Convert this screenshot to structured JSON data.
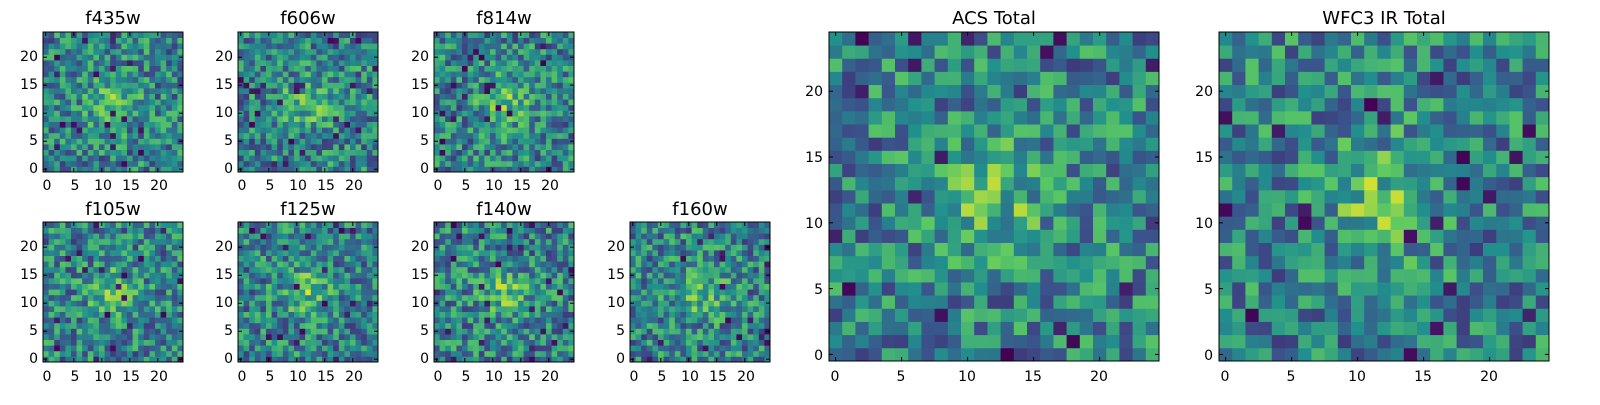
{
  "chart_data": [
    {
      "type": "heatmap",
      "title": "f435w",
      "xticks": [
        "0",
        "5",
        "10",
        "15",
        "20"
      ],
      "yticks": [
        "0",
        "5",
        "10",
        "15",
        "20"
      ],
      "xlim": [
        -0.5,
        24.5
      ],
      "ylim": [
        -0.5,
        24.5
      ],
      "grid_size": 25,
      "seed": 11
    },
    {
      "type": "heatmap",
      "title": "f606w",
      "xticks": [
        "0",
        "5",
        "10",
        "15",
        "20"
      ],
      "yticks": [
        "0",
        "5",
        "10",
        "15",
        "20"
      ],
      "xlim": [
        -0.5,
        24.5
      ],
      "ylim": [
        -0.5,
        24.5
      ],
      "grid_size": 25,
      "seed": 23
    },
    {
      "type": "heatmap",
      "title": "f814w",
      "xticks": [
        "0",
        "5",
        "10",
        "15",
        "20"
      ],
      "yticks": [
        "0",
        "5",
        "10",
        "15",
        "20"
      ],
      "xlim": [
        -0.5,
        24.5
      ],
      "ylim": [
        -0.5,
        24.5
      ],
      "grid_size": 25,
      "seed": 37
    },
    {
      "type": "heatmap",
      "title": "f105w",
      "xticks": [
        "0",
        "5",
        "10",
        "15",
        "20"
      ],
      "yticks": [
        "0",
        "5",
        "10",
        "15",
        "20"
      ],
      "xlim": [
        -0.5,
        24.5
      ],
      "ylim": [
        -0.5,
        24.5
      ],
      "grid_size": 25,
      "seed": 41
    },
    {
      "type": "heatmap",
      "title": "f125w",
      "xticks": [
        "0",
        "5",
        "10",
        "15",
        "20"
      ],
      "yticks": [
        "0",
        "5",
        "10",
        "15",
        "20"
      ],
      "xlim": [
        -0.5,
        24.5
      ],
      "ylim": [
        -0.5,
        24.5
      ],
      "grid_size": 25,
      "seed": 53
    },
    {
      "type": "heatmap",
      "title": "f140w",
      "xticks": [
        "0",
        "5",
        "10",
        "15",
        "20"
      ],
      "yticks": [
        "0",
        "5",
        "10",
        "15",
        "20"
      ],
      "xlim": [
        -0.5,
        24.5
      ],
      "ylim": [
        -0.5,
        24.5
      ],
      "grid_size": 25,
      "seed": 67
    },
    {
      "type": "heatmap",
      "title": "f160w",
      "xticks": [
        "0",
        "5",
        "10",
        "15",
        "20"
      ],
      "yticks": [
        "0",
        "5",
        "10",
        "15",
        "20"
      ],
      "xlim": [
        -0.5,
        24.5
      ],
      "ylim": [
        -0.5,
        24.5
      ],
      "grid_size": 25,
      "seed": 79
    },
    {
      "type": "heatmap",
      "title": "ACS Total",
      "xticks": [
        "0",
        "5",
        "10",
        "15",
        "20"
      ],
      "yticks": [
        "0",
        "5",
        "10",
        "15",
        "20"
      ],
      "xlim": [
        -0.5,
        24.5
      ],
      "ylim": [
        -0.5,
        24.5
      ],
      "grid_size": 25,
      "seed": 97
    },
    {
      "type": "heatmap",
      "title": "WFC3 IR Total",
      "xticks": [
        "0",
        "5",
        "10",
        "15",
        "20"
      ],
      "yticks": [
        "0",
        "5",
        "10",
        "15",
        "20"
      ],
      "xlim": [
        -0.5,
        24.5
      ],
      "ylim": [
        -0.5,
        24.5
      ],
      "grid_size": 25,
      "seed": 131
    }
  ],
  "colormap": [
    "#440154",
    "#3b528b",
    "#21908d",
    "#5dc962",
    "#fde725"
  ]
}
